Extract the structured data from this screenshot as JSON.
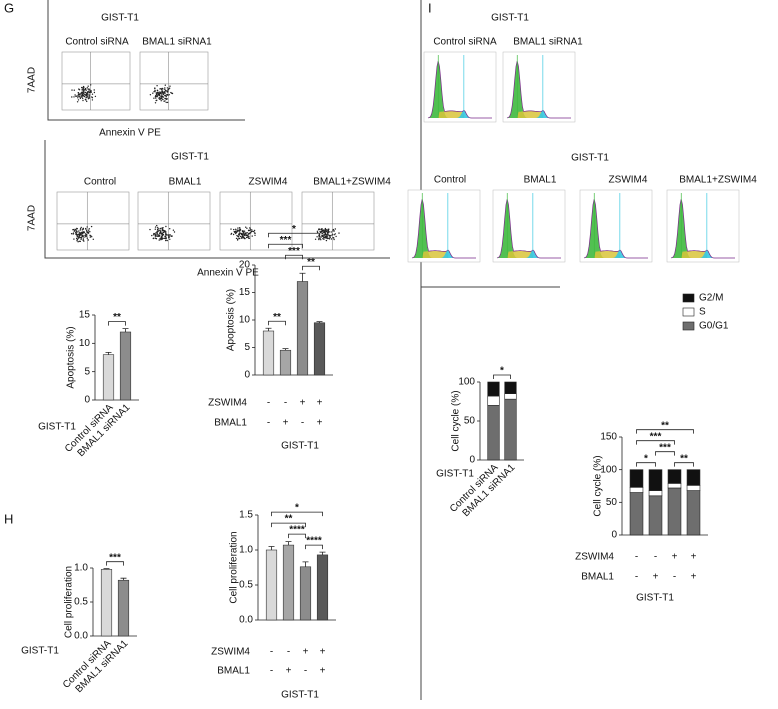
{
  "panels": [
    {
      "letter": "G",
      "groups": [
        {
          "title": "GIST-T1",
          "conditions": [
            "Control siRNA",
            "BMAL1 siRNA1"
          ],
          "y_label": "7AAD",
          "x_label": "Annexin V PE"
        },
        {
          "title": "GIST-T1",
          "conditions": [
            "Control",
            "BMAL1",
            "ZSWIM4",
            "BMAL1+ZSWIM4"
          ],
          "y_label": "7AAD",
          "x_label": "Annexin V PE"
        }
      ]
    },
    {
      "letter": "H"
    },
    {
      "letter": "I",
      "groups": [
        {
          "title": "GIST-T1",
          "conditions": [
            "Control siRNA",
            "BMAL1 siRNA1"
          ]
        },
        {
          "title": "GIST-T1",
          "conditions": [
            "Control",
            "BMAL1",
            "ZSWIM4",
            "BMAL1+ZSWIM4"
          ]
        }
      ]
    }
  ],
  "chart_data": [
    {
      "type": "bar",
      "y_label": "Apoptosis (%)",
      "x_label": "GIST-T1",
      "categories": [
        "Control siRNA",
        "BMAL1 siRNA1"
      ],
      "values": [
        8,
        12
      ],
      "errors": [
        0.4,
        0.6
      ],
      "colors": [
        "#d9d9d9",
        "#8c8c8c"
      ],
      "ylim": [
        0,
        15
      ],
      "yticks": [
        0,
        5,
        10,
        15
      ],
      "comparisons": [
        {
          "label": "**",
          "bars": [
            0,
            1
          ]
        }
      ]
    },
    {
      "type": "bar",
      "y_label": "Apoptosis (%)",
      "x_label": "GIST-T1",
      "categories": [
        null,
        null,
        null,
        null
      ],
      "values": [
        8,
        4.5,
        17,
        9.5
      ],
      "errors": [
        0.5,
        0.3,
        1.5,
        0.2
      ],
      "colors": [
        "#d9d9d9",
        "#a6a6a6",
        "#8c8c8c",
        "#595959"
      ],
      "ylim": [
        0,
        20
      ],
      "yticks": [
        0,
        5,
        10,
        15,
        20
      ],
      "rows": [
        {
          "name": "ZSWIM4",
          "values": [
            "-",
            "-",
            "+",
            "+"
          ]
        },
        {
          "name": "BMAL1",
          "values": [
            "-",
            "+",
            "-",
            "+"
          ]
        }
      ],
      "comparisons": [
        {
          "label": "**",
          "bars": [
            0,
            1
          ]
        },
        {
          "label": "**",
          "bars": [
            2,
            3
          ]
        },
        {
          "label": "***",
          "bars": [
            1,
            2
          ]
        },
        {
          "label": "***",
          "bars": [
            0,
            2
          ]
        },
        {
          "label": "*",
          "bars": [
            0,
            3
          ]
        }
      ]
    },
    {
      "type": "bar",
      "y_label": "Cell proliferation",
      "x_label": "GIST-T1",
      "categories": [
        "Control siRNA",
        "BMAL1 siRNA1"
      ],
      "values": [
        0.98,
        0.82
      ],
      "errors": [
        0.01,
        0.03
      ],
      "colors": [
        "#d9d9d9",
        "#8c8c8c"
      ],
      "ylim": [
        0,
        1
      ],
      "yticks": [
        {
          "value": 0,
          "label": "0.0"
        },
        {
          "value": 0.5,
          "label": "0.5"
        },
        {
          "value": 1,
          "label": "1.0"
        }
      ],
      "comparisons": [
        {
          "label": "***",
          "bars": [
            0,
            1
          ]
        }
      ]
    },
    {
      "type": "bar",
      "y_label": "Cell proliferation",
      "x_label": "GIST-T1",
      "categories": [
        null,
        null,
        null,
        null
      ],
      "values": [
        1.0,
        1.07,
        0.76,
        0.93
      ],
      "errors": [
        0.05,
        0.05,
        0.07,
        0.04
      ],
      "colors": [
        "#d9d9d9",
        "#a6a6a6",
        "#8c8c8c",
        "#595959"
      ],
      "ylim": [
        0,
        1.5
      ],
      "yticks": [
        {
          "value": 0,
          "label": "0.0"
        },
        {
          "value": 0.5,
          "label": "0.5"
        },
        {
          "value": 1,
          "label": "1.0"
        },
        {
          "value": 1.5,
          "label": "1.5"
        }
      ],
      "rows": [
        {
          "name": "ZSWIM4",
          "values": [
            "-",
            "-",
            "+",
            "+"
          ]
        },
        {
          "name": "BMAL1",
          "values": [
            "-",
            "+",
            "-",
            "+"
          ]
        }
      ],
      "comparisons": [
        {
          "label": "****",
          "bars": [
            2,
            3
          ]
        },
        {
          "label": "****",
          "bars": [
            1,
            2
          ]
        },
        {
          "label": "**",
          "bars": [
            0,
            2
          ]
        },
        {
          "label": "*",
          "bars": [
            0,
            3
          ]
        }
      ]
    },
    {
      "type": "stacked_bar",
      "y_label": "Cell cycle (%)",
      "x_label": "GIST-T1",
      "categories": [
        "Control siRNA",
        "BMAL1 siRNA1"
      ],
      "series": [
        {
          "name": "G0/G1",
          "color": "#6e6e6e",
          "values": [
            70,
            78
          ]
        },
        {
          "name": "S",
          "color": "#ffffff",
          "values": [
            12,
            7
          ]
        },
        {
          "name": "G2/M",
          "color": "#111111",
          "values": [
            18,
            15
          ]
        }
      ],
      "ylim": [
        0,
        100
      ],
      "yticks": [
        0,
        50,
        100
      ],
      "comparisons": [
        {
          "label": "*",
          "bars": [
            0,
            1
          ]
        }
      ]
    },
    {
      "type": "stacked_bar",
      "y_label": "Cell cycle (%)",
      "x_label": "GIST-T1",
      "categories": [
        null,
        null,
        null,
        null
      ],
      "series": [
        {
          "name": "G0/G1",
          "color": "#6e6e6e",
          "values": [
            65,
            60,
            72,
            68
          ]
        },
        {
          "name": "S",
          "color": "#ffffff",
          "values": [
            8,
            8,
            7,
            8
          ]
        },
        {
          "name": "G2/M",
          "color": "#111111",
          "values": [
            27,
            32,
            21,
            24
          ]
        }
      ],
      "ylim": [
        0,
        150
      ],
      "yticks": [
        0,
        50,
        100,
        150
      ],
      "legend": "top-right",
      "rows": [
        {
          "name": "ZSWIM4",
          "values": [
            "-",
            "-",
            "+",
            "+"
          ]
        },
        {
          "name": "BMAL1",
          "values": [
            "-",
            "+",
            "-",
            "+"
          ]
        }
      ],
      "comparisons": [
        {
          "label": "*",
          "bars": [
            0,
            1
          ]
        },
        {
          "label": "**",
          "bars": [
            2,
            3
          ]
        },
        {
          "label": "***",
          "bars": [
            1,
            2
          ]
        },
        {
          "label": "***",
          "bars": [
            0,
            2
          ]
        },
        {
          "label": "**",
          "bars": [
            0,
            3
          ]
        }
      ]
    }
  ]
}
